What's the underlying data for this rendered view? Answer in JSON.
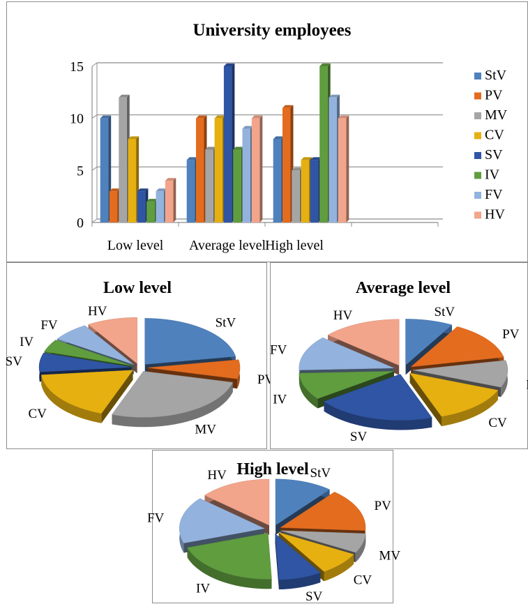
{
  "chart_data": [
    {
      "type": "bar",
      "title": "University employees",
      "categories": [
        "Low level",
        "Average level",
        "High level"
      ],
      "ylim": [
        0,
        15
      ],
      "yticks": [
        "0",
        "5",
        "10",
        "15"
      ],
      "grid": true,
      "legend_position": "right",
      "series": [
        {
          "name": "StV",
          "color": "#4f81bd",
          "values": [
            10,
            6,
            8
          ]
        },
        {
          "name": "PV",
          "color": "#e46c1f",
          "values": [
            3,
            10,
            11
          ]
        },
        {
          "name": "MV",
          "color": "#a5a5a5",
          "values": [
            12,
            7,
            5
          ]
        },
        {
          "name": "CV",
          "color": "#e6b011",
          "values": [
            8,
            10,
            6
          ]
        },
        {
          "name": "SV",
          "color": "#2f55a4",
          "values": [
            3,
            15,
            6
          ]
        },
        {
          "name": "IV",
          "color": "#5f9d3f",
          "values": [
            2,
            7,
            15
          ]
        },
        {
          "name": "FV",
          "color": "#93b3de",
          "values": [
            3,
            9,
            12
          ]
        },
        {
          "name": "HV",
          "color": "#f2a58b",
          "values": [
            4,
            10,
            10
          ]
        }
      ]
    },
    {
      "type": "pie",
      "title": "Low level",
      "labels": [
        "StV",
        "PV",
        "MV",
        "CV",
        "SV",
        "IV",
        "FV",
        "HV"
      ],
      "values": [
        10,
        3,
        12,
        8,
        3,
        2,
        3,
        4
      ]
    },
    {
      "type": "pie",
      "title": "Average level",
      "labels": [
        "StV",
        "PV",
        "MV",
        "CV",
        "SV",
        "IV",
        "FV",
        "HV"
      ],
      "values": [
        6,
        10,
        7,
        10,
        15,
        7,
        9,
        10
      ]
    },
    {
      "type": "pie",
      "title": "High level",
      "labels": [
        "StV",
        "PV",
        "MV",
        "CV",
        "SV",
        "IV",
        "FV",
        "HV"
      ],
      "values": [
        8,
        11,
        5,
        6,
        6,
        15,
        12,
        10
      ]
    }
  ]
}
